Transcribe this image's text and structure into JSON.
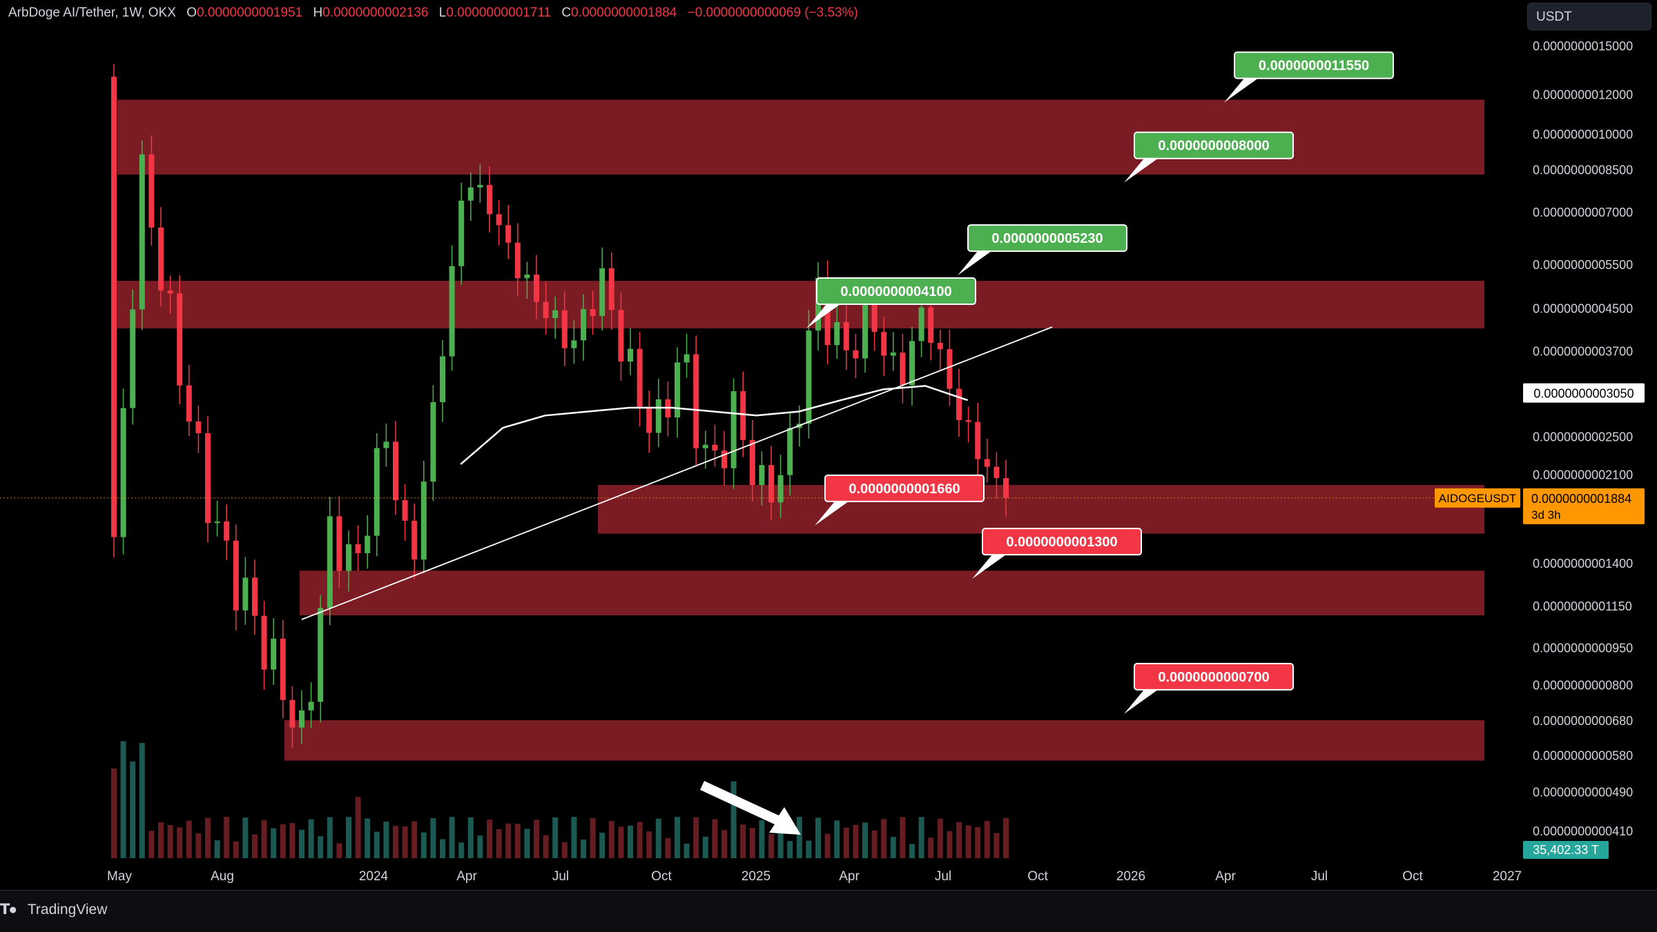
{
  "header": {
    "symbol": "ArbDoge AI/Tether, 1W, OKX",
    "open_label": "O",
    "open": "0.0000000001951",
    "high_label": "H",
    "high": "0.0000000002136",
    "low_label": "L",
    "low": "0.0000000001711",
    "close_label": "C",
    "close": "0.0000000001884",
    "change": "−0.0000000000069 (−3.53%)"
  },
  "currency_selector": "USDT",
  "branding": "TradingView",
  "colors": {
    "up": "#26a69a",
    "up_candle": "#4caf50",
    "down": "#f23645",
    "zone": "#7b1c24",
    "label_green": "#4caf50",
    "label_red": "#f23645",
    "price_tag": "#ff9800",
    "volume_tag": "#26a69a"
  },
  "chart_data": {
    "type": "candlestick",
    "yscale": "log",
    "y_axis_ticks": [
      "0.0000000015000",
      "0.0000000012000",
      "0.0000000010000",
      "0.0000000008500",
      "0.0000000007000",
      "0.0000000005500",
      "0.0000000004500",
      "0.0000000003700",
      "0.0000000002500",
      "0.0000000002100",
      "0.0000000001400",
      "0.0000000001150",
      "0.0000000000950",
      "0.0000000000800",
      "0.0000000000680",
      "0.0000000000580",
      "0.0000000000490",
      "0.0000000000410"
    ],
    "x_axis_ticks": [
      "May",
      "Aug",
      "2024",
      "Apr",
      "Jul",
      "Oct",
      "2025",
      "Apr",
      "Jul",
      "Oct",
      "2026",
      "Apr",
      "Jul",
      "Oct",
      "2027"
    ],
    "current_price_tag": {
      "symbol": "AIDOGEUSDT",
      "price": "0.0000000001884",
      "countdown": "3d 3h"
    },
    "marker_price": "0.0000000003050",
    "volume_tag": "35,402.33 T",
    "levels": [
      {
        "price": "0.0000000011550",
        "color": "green"
      },
      {
        "price": "0.0000000008000",
        "color": "green"
      },
      {
        "price": "0.0000000005230",
        "color": "green"
      },
      {
        "price": "0.0000000004100",
        "color": "green"
      },
      {
        "price": "0.0000000001660",
        "color": "red"
      },
      {
        "price": "0.0000000001300",
        "color": "red"
      },
      {
        "price": "0.0000000000700",
        "color": "red"
      }
    ],
    "zones": [
      {
        "from": 8.3e-10,
        "to": 1.17e-09
      },
      {
        "from": 4.1e-10,
        "to": 5.1e-10
      },
      {
        "from": 1.6e-10,
        "to": 2e-10
      },
      {
        "from": 1.1e-10,
        "to": 1.35e-10
      },
      {
        "from": 5.65e-11,
        "to": 6.8e-11
      }
    ],
    "series": [
      {
        "name": "close",
        "values": [
          1.5e-10,
          8.5e-10,
          4.5e-10,
          2.4e-10,
          1.5e-10,
          1.15e-10,
          8.5e-11,
          6.2e-11,
          1.6e-10,
          1.38e-10,
          2.6e-10,
          1.35e-10,
          3.3e-10,
          8.4e-10,
          7e-10,
          5.3e-10,
          4.4e-10,
          3.8e-10,
          5.2e-10,
          3.5e-10,
          2.5e-10,
          3.7e-10,
          2.1e-10,
          2.8e-10,
          1.9e-10,
          2.3e-10,
          4.9e-10,
          3.6e-10,
          4.4e-10,
          3.2e-10,
          4.5e-10,
          3e-10,
          2.3e-10,
          1.884e-10
        ]
      },
      {
        "name": "moving average",
        "values": [
          2.2e-10,
          2.6e-10,
          2.75e-10,
          2.8e-10,
          2.85e-10,
          2.85e-10,
          2.8e-10,
          2.75e-10,
          2.8e-10,
          2.95e-10,
          3.1e-10,
          3.15e-10,
          2.95e-10
        ]
      }
    ]
  }
}
